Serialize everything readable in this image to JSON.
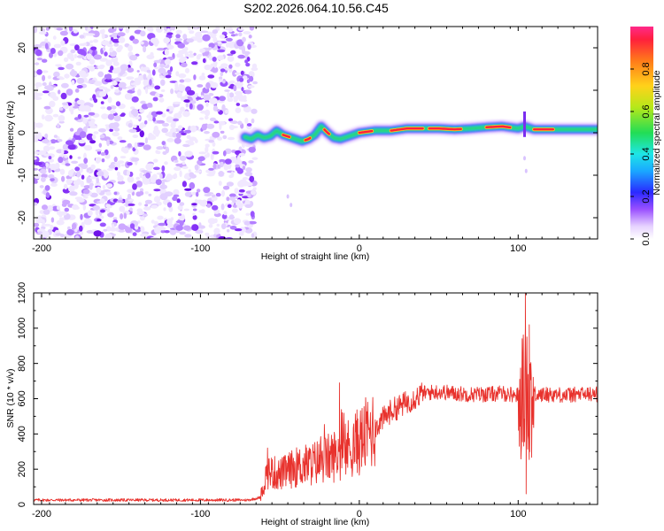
{
  "title": "S202.2026.064.10.56.C45",
  "chart_data": [
    {
      "type": "heatmap",
      "name": "spectrogram",
      "xlabel": "Height of straight line (km)",
      "ylabel": "Frequency (Hz)",
      "xlim": [
        -205,
        150
      ],
      "ylim": [
        -25,
        25
      ],
      "xticks": [
        -200,
        -100,
        0,
        100
      ],
      "yticks": [
        -20,
        -10,
        0,
        10,
        20
      ],
      "noise_region_x": [
        -205,
        -70
      ],
      "signal_track": {
        "x": [
          -72,
          -68,
          -64,
          -60,
          -56,
          -52,
          -48,
          -44,
          -40,
          -36,
          -32,
          -28,
          -24,
          -20,
          -16,
          -12,
          -8,
          -4,
          0,
          10,
          20,
          30,
          40,
          50,
          60,
          70,
          80,
          90,
          100,
          104,
          110,
          120,
          130,
          140,
          150
        ],
        "freq": [
          -1,
          -1.5,
          -0.5,
          -1.2,
          -0.8,
          0.5,
          -0.5,
          -1,
          -1.5,
          -2,
          -1.5,
          -0.5,
          1.5,
          0,
          -1.2,
          -1.5,
          -1,
          -0.5,
          0,
          0.5,
          0.5,
          1,
          1,
          1,
          0.8,
          1,
          1.3,
          1.5,
          1,
          1.5,
          0.8,
          0.8,
          0.8,
          0.8,
          0.8
        ]
      },
      "colorbar": {
        "label": "Normalized spectral amplitude",
        "range": [
          0.0,
          1.0
        ],
        "ticks": [
          0.0,
          0.2,
          0.4,
          0.6,
          0.8
        ],
        "tick_labels": [
          "0.0",
          "0.2",
          "0.4",
          "0.6",
          "0.8"
        ]
      }
    },
    {
      "type": "line",
      "name": "snr",
      "xlabel": "Height of straight line (km)",
      "ylabel": "SNR (10 * v/v)",
      "xlim": [
        -205,
        150
      ],
      "ylim": [
        0,
        1200
      ],
      "xticks": [
        -200,
        -100,
        0,
        100
      ],
      "yticks": [
        0,
        200,
        400,
        600,
        800,
        1000,
        1200
      ],
      "color": "#e8322d",
      "envelope": {
        "x": [
          -205,
          -70,
          -62,
          -58,
          -50,
          -40,
          -30,
          -20,
          -10,
          0,
          10,
          20,
          30,
          40,
          50,
          60,
          70,
          80,
          90,
          100,
          104,
          106,
          108,
          112,
          120,
          130,
          140,
          150
        ],
        "y": [
          25,
          25,
          40,
          190,
          170,
          210,
          230,
          260,
          300,
          360,
          440,
          530,
          580,
          630,
          640,
          630,
          625,
          625,
          630,
          620,
          640,
          620,
          630,
          620,
          625,
          620,
          625,
          625
        ]
      },
      "spikes": [
        {
          "x": -12.5,
          "y": 690
        },
        {
          "x": 104.5,
          "y": 1200
        },
        {
          "x": 105,
          "y": 60
        },
        {
          "x": 107,
          "y": 1020
        },
        {
          "x": 101,
          "y": 480
        }
      ]
    }
  ]
}
